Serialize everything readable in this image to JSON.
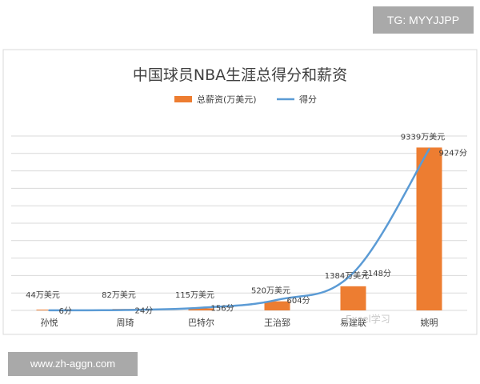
{
  "overlay": {
    "top_tag": "TG: MYYJJPP",
    "bottom_tag": "www.zh-aggn.com",
    "watermark": "Excel学习"
  },
  "colors": {
    "bar": "#ed7d31",
    "line": "#5b9bd5",
    "grid": "#d9d9d9",
    "text": "#404040"
  },
  "chart_data": {
    "type": "bar",
    "title": "中国球员NBA生涯总得分和薪资",
    "legend_position": "top",
    "grid": true,
    "categories": [
      "孙悦",
      "周琦",
      "巴特尔",
      "王治郅",
      "易建联",
      "姚明"
    ],
    "series": [
      {
        "name": "总薪资(万美元)",
        "type": "bar",
        "values": [
          44,
          82,
          115,
          520,
          1384,
          9339
        ],
        "labels": [
          "44万美元",
          "82万美元",
          "115万美元",
          "520万美元",
          "1384万美元",
          "9339万美元"
        ]
      },
      {
        "name": "得分",
        "type": "line",
        "values": [
          6,
          24,
          156,
          604,
          2148,
          9247
        ],
        "labels": [
          "6分",
          "24分",
          "156分",
          "604分",
          "2148分",
          "9247分"
        ]
      }
    ],
    "ylim": [
      0,
      10000
    ]
  }
}
